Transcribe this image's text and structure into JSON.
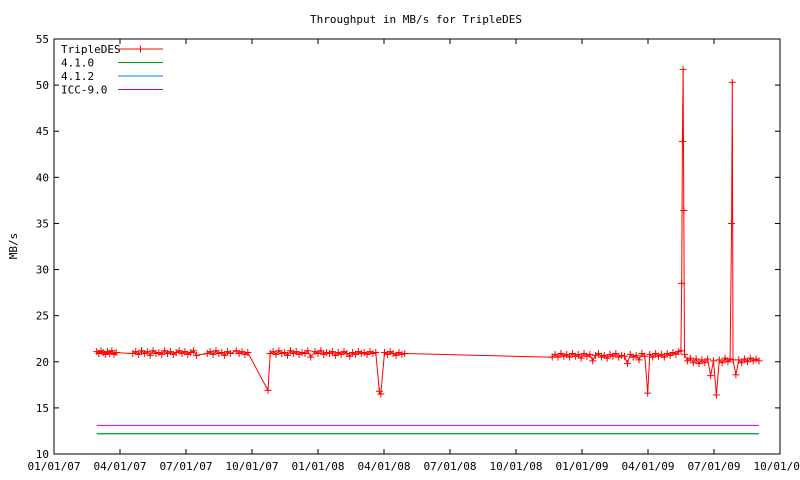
{
  "chart_data": {
    "type": "line",
    "title": "Throughput in MB/s for TripleDES",
    "xlabel": "",
    "ylabel": "MB/s",
    "xlim": [
      "2007-01-01",
      "2009-10-01"
    ],
    "ylim": [
      10,
      55
    ],
    "x_ticks": [
      "01/01/07",
      "04/01/07",
      "07/01/07",
      "10/01/07",
      "01/01/08",
      "04/01/08",
      "07/01/08",
      "10/01/08",
      "01/01/09",
      "04/01/09",
      "07/01/09",
      "10/01/09"
    ],
    "y_ticks": [
      10,
      15,
      20,
      25,
      30,
      35,
      40,
      45,
      50,
      55
    ],
    "grid": false,
    "legend_position": "top-left",
    "series": [
      {
        "name": "TripleDES",
        "color": "#ff0000",
        "marker": "plus",
        "points": [
          [
            "2007-03-01",
            21.1
          ],
          [
            "2007-03-04",
            20.9
          ],
          [
            "2007-03-07",
            21.2
          ],
          [
            "2007-03-10",
            21.0
          ],
          [
            "2007-03-13",
            20.8
          ],
          [
            "2007-03-16",
            21.1
          ],
          [
            "2007-03-19",
            20.9
          ],
          [
            "2007-03-22",
            21.2
          ],
          [
            "2007-03-25",
            20.8
          ],
          [
            "2007-03-28",
            21.0
          ],
          [
            "2007-04-20",
            20.9
          ],
          [
            "2007-04-24",
            21.1
          ],
          [
            "2007-04-28",
            20.8
          ],
          [
            "2007-05-02",
            21.2
          ],
          [
            "2007-05-06",
            20.9
          ],
          [
            "2007-05-10",
            21.1
          ],
          [
            "2007-05-14",
            20.7
          ],
          [
            "2007-05-18",
            21.2
          ],
          [
            "2007-05-22",
            20.9
          ],
          [
            "2007-05-26",
            21.0
          ],
          [
            "2007-05-30",
            20.8
          ],
          [
            "2007-06-03",
            21.2
          ],
          [
            "2007-06-07",
            20.9
          ],
          [
            "2007-06-11",
            21.1
          ],
          [
            "2007-06-15",
            20.8
          ],
          [
            "2007-06-19",
            21.0
          ],
          [
            "2007-06-23",
            21.2
          ],
          [
            "2007-06-27",
            20.9
          ],
          [
            "2007-07-01",
            21.1
          ],
          [
            "2007-07-05",
            20.8
          ],
          [
            "2007-07-09",
            21.0
          ],
          [
            "2007-07-13",
            21.2
          ],
          [
            "2007-07-17",
            20.7
          ],
          [
            "2007-08-01",
            20.9
          ],
          [
            "2007-08-05",
            21.1
          ],
          [
            "2007-08-09",
            20.8
          ],
          [
            "2007-08-13",
            21.2
          ],
          [
            "2007-08-17",
            20.9
          ],
          [
            "2007-08-21",
            21.0
          ],
          [
            "2007-08-25",
            20.7
          ],
          [
            "2007-08-29",
            21.1
          ],
          [
            "2007-09-02",
            20.9
          ],
          [
            "2007-09-10",
            21.2
          ],
          [
            "2007-09-14",
            20.9
          ],
          [
            "2007-09-18",
            21.1
          ],
          [
            "2007-09-22",
            20.8
          ],
          [
            "2007-09-26",
            21.0
          ],
          [
            "2007-10-24",
            16.9
          ],
          [
            "2007-10-27",
            20.9
          ],
          [
            "2007-10-31",
            21.1
          ],
          [
            "2007-11-04",
            20.8
          ],
          [
            "2007-11-08",
            21.2
          ],
          [
            "2007-11-12",
            20.9
          ],
          [
            "2007-11-16",
            21.0
          ],
          [
            "2007-11-20",
            20.7
          ],
          [
            "2007-11-24",
            21.2
          ],
          [
            "2007-11-28",
            20.9
          ],
          [
            "2007-12-02",
            21.1
          ],
          [
            "2007-12-06",
            20.8
          ],
          [
            "2007-12-10",
            21.0
          ],
          [
            "2007-12-14",
            20.9
          ],
          [
            "2007-12-18",
            21.2
          ],
          [
            "2007-12-22",
            20.5
          ],
          [
            "2007-12-28",
            21.1
          ],
          [
            "2008-01-01",
            20.9
          ],
          [
            "2008-01-05",
            21.2
          ],
          [
            "2008-01-09",
            20.8
          ],
          [
            "2008-01-13",
            21.0
          ],
          [
            "2008-01-17",
            20.9
          ],
          [
            "2008-01-21",
            21.1
          ],
          [
            "2008-01-25",
            20.7
          ],
          [
            "2008-01-29",
            21.0
          ],
          [
            "2008-02-02",
            20.8
          ],
          [
            "2008-02-06",
            21.1
          ],
          [
            "2008-02-10",
            20.9
          ],
          [
            "2008-02-14",
            20.6
          ],
          [
            "2008-02-18",
            21.0
          ],
          [
            "2008-02-22",
            20.8
          ],
          [
            "2008-02-26",
            21.1
          ],
          [
            "2008-03-01",
            20.9
          ],
          [
            "2008-03-05",
            21.0
          ],
          [
            "2008-03-09",
            20.8
          ],
          [
            "2008-03-13",
            21.1
          ],
          [
            "2008-03-17",
            20.9
          ],
          [
            "2008-03-21",
            21.0
          ],
          [
            "2008-03-26",
            16.8
          ],
          [
            "2008-03-28",
            16.5
          ],
          [
            "2008-04-02",
            21.0
          ],
          [
            "2008-04-06",
            20.8
          ],
          [
            "2008-04-10",
            21.1
          ],
          [
            "2008-04-14",
            20.9
          ],
          [
            "2008-04-18",
            20.7
          ],
          [
            "2008-04-22",
            21.0
          ],
          [
            "2008-04-26",
            20.8
          ],
          [
            "2008-04-30",
            20.9
          ],
          [
            "2008-11-20",
            20.5
          ],
          [
            "2008-11-24",
            20.8
          ],
          [
            "2008-11-28",
            20.5
          ],
          [
            "2008-12-02",
            20.9
          ],
          [
            "2008-12-06",
            20.6
          ],
          [
            "2008-12-10",
            20.8
          ],
          [
            "2008-12-14",
            20.5
          ],
          [
            "2008-12-18",
            20.9
          ],
          [
            "2008-12-22",
            20.6
          ],
          [
            "2008-12-26",
            20.8
          ],
          [
            "2008-12-30",
            20.4
          ],
          [
            "2009-01-03",
            20.9
          ],
          [
            "2009-01-07",
            20.6
          ],
          [
            "2009-01-11",
            20.8
          ],
          [
            "2009-01-15",
            20.1
          ],
          [
            "2009-01-19",
            20.7
          ],
          [
            "2009-01-23",
            20.9
          ],
          [
            "2009-01-27",
            20.5
          ],
          [
            "2009-01-31",
            20.7
          ],
          [
            "2009-02-04",
            20.4
          ],
          [
            "2009-02-08",
            20.8
          ],
          [
            "2009-02-12",
            20.6
          ],
          [
            "2009-02-16",
            20.9
          ],
          [
            "2009-02-20",
            20.5
          ],
          [
            "2009-02-24",
            20.7
          ],
          [
            "2009-02-28",
            20.6
          ],
          [
            "2009-03-04",
            19.8
          ],
          [
            "2009-03-08",
            20.8
          ],
          [
            "2009-03-12",
            20.5
          ],
          [
            "2009-03-16",
            20.7
          ],
          [
            "2009-03-20",
            20.2
          ],
          [
            "2009-03-24",
            20.9
          ],
          [
            "2009-03-28",
            20.6
          ],
          [
            "2009-04-01",
            16.6
          ],
          [
            "2009-04-04",
            20.8
          ],
          [
            "2009-04-08",
            20.5
          ],
          [
            "2009-04-12",
            20.9
          ],
          [
            "2009-04-16",
            20.6
          ],
          [
            "2009-04-20",
            20.8
          ],
          [
            "2009-04-24",
            20.5
          ],
          [
            "2009-04-28",
            20.9
          ],
          [
            "2009-05-02",
            20.7
          ],
          [
            "2009-05-06",
            21.0
          ],
          [
            "2009-05-10",
            20.8
          ],
          [
            "2009-05-14",
            21.1
          ],
          [
            "2009-05-17",
            21.2
          ],
          [
            "2009-05-18",
            28.5
          ],
          [
            "2009-05-19",
            43.9
          ],
          [
            "2009-05-20",
            51.7
          ],
          [
            "2009-05-21",
            36.4
          ],
          [
            "2009-05-22",
            20.8
          ],
          [
            "2009-05-26",
            20.1
          ],
          [
            "2009-05-30",
            20.4
          ],
          [
            "2009-06-03",
            19.9
          ],
          [
            "2009-06-07",
            20.3
          ],
          [
            "2009-06-11",
            19.8
          ],
          [
            "2009-06-15",
            20.2
          ],
          [
            "2009-06-19",
            19.9
          ],
          [
            "2009-06-23",
            20.3
          ],
          [
            "2009-06-27",
            18.5
          ],
          [
            "2009-07-01",
            20.1
          ],
          [
            "2009-07-05",
            16.4
          ],
          [
            "2009-07-09",
            20.2
          ],
          [
            "2009-07-13",
            19.9
          ],
          [
            "2009-07-17",
            20.4
          ],
          [
            "2009-07-21",
            20.0
          ],
          [
            "2009-07-24",
            20.3
          ],
          [
            "2009-07-26",
            35.0
          ],
          [
            "2009-07-27",
            50.3
          ],
          [
            "2009-07-28",
            20.2
          ],
          [
            "2009-08-01",
            18.6
          ],
          [
            "2009-08-05",
            20.2
          ],
          [
            "2009-08-09",
            19.9
          ],
          [
            "2009-08-13",
            20.3
          ],
          [
            "2009-08-17",
            20.0
          ],
          [
            "2009-08-21",
            20.4
          ],
          [
            "2009-08-25",
            20.1
          ],
          [
            "2009-08-29",
            20.3
          ],
          [
            "2009-09-02",
            20.1
          ]
        ]
      },
      {
        "name": "4.1.0",
        "color": "#00a000",
        "marker": "none",
        "points": [
          [
            "2007-03-01",
            12.2
          ],
          [
            "2009-09-02",
            12.2
          ]
        ]
      },
      {
        "name": "4.1.2",
        "color": "#0080ff",
        "marker": "none",
        "points": [
          [
            "2007-03-01",
            12.2
          ],
          [
            "2009-09-02",
            12.2
          ]
        ]
      },
      {
        "name": "ICC-9.0",
        "color": "#c000c0",
        "marker": "none",
        "points": [
          [
            "2007-03-01",
            13.1
          ],
          [
            "2009-09-02",
            13.1
          ]
        ]
      }
    ]
  }
}
